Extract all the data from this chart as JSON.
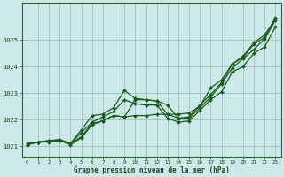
{
  "title": "Graphe pression niveau de la mer (hPa)",
  "background_color": "#cce8e8",
  "grid_color": "#99bbbb",
  "line_color": "#1a5c1a",
  "xlim": [
    -0.5,
    23.5
  ],
  "ylim": [
    1020.6,
    1026.4
  ],
  "yticks": [
    1021,
    1022,
    1023,
    1024,
    1025
  ],
  "xticks": [
    0,
    1,
    2,
    3,
    4,
    5,
    6,
    7,
    8,
    9,
    10,
    11,
    12,
    13,
    14,
    15,
    16,
    17,
    18,
    19,
    20,
    21,
    22,
    23
  ],
  "series": [
    [
      1021.1,
      1021.15,
      1021.2,
      1021.2,
      1021.1,
      1021.35,
      1021.85,
      1021.95,
      1022.15,
      1022.1,
      1022.75,
      1022.75,
      1022.7,
      1022.55,
      1022.05,
      1022.05,
      1022.45,
      1022.85,
      1023.35,
      1023.95,
      1024.3,
      1024.65,
      1025.05,
      1025.75
    ],
    [
      1021.05,
      1021.15,
      1021.2,
      1021.25,
      1021.1,
      1021.6,
      1022.15,
      1022.2,
      1022.45,
      1023.1,
      1022.8,
      1022.75,
      1022.7,
      1022.2,
      1022.05,
      1022.1,
      1022.55,
      1022.95,
      1023.4,
      1024.1,
      1024.4,
      1024.9,
      1025.2,
      1025.8
    ],
    [
      1021.05,
      1021.15,
      1021.2,
      1021.2,
      1021.1,
      1021.5,
      1021.9,
      1022.1,
      1022.3,
      1022.75,
      1022.6,
      1022.55,
      1022.55,
      1022.05,
      1021.9,
      1021.95,
      1022.35,
      1022.75,
      1023.05,
      1023.8,
      1024.0,
      1024.5,
      1024.75,
      1025.5
    ],
    [
      1021.05,
      1021.15,
      1021.15,
      1021.2,
      1021.05,
      1021.3,
      1021.8,
      1021.95,
      1022.15,
      1022.1,
      1022.15,
      1022.15,
      1022.2,
      1022.2,
      1022.2,
      1022.25,
      1022.5,
      1023.2,
      1023.5,
      1024.1,
      1024.35,
      1024.85,
      1025.1,
      1025.85
    ]
  ]
}
